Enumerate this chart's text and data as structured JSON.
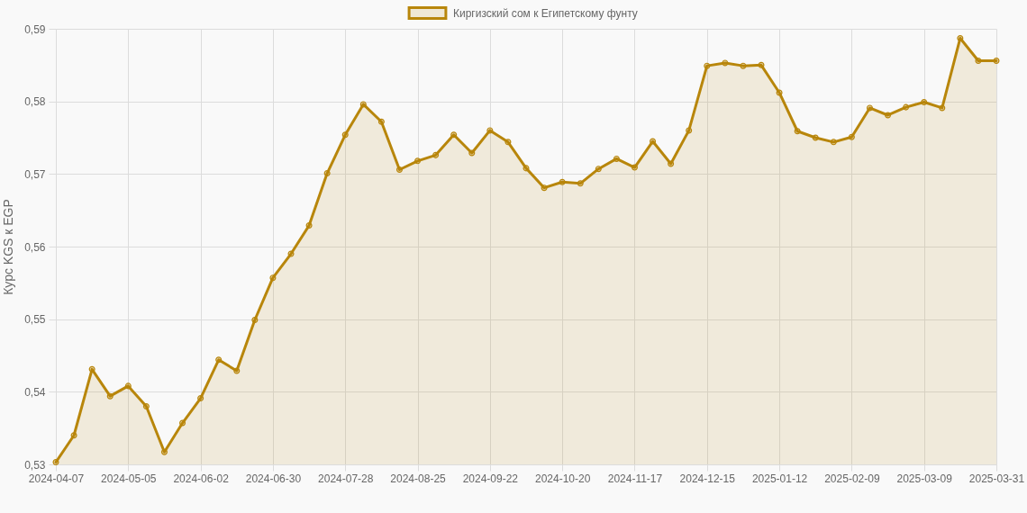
{
  "chart_data": {
    "type": "area",
    "ylabel": "Курс KGS к EGP",
    "categories": [
      "2024-04-07",
      null,
      null,
      null,
      "2024-05-05",
      null,
      null,
      null,
      "2024-06-02",
      null,
      null,
      null,
      "2024-06-30",
      null,
      null,
      null,
      "2024-07-28",
      null,
      null,
      null,
      "2024-08-25",
      null,
      null,
      null,
      "2024-09-22",
      null,
      null,
      null,
      "2024-10-20",
      null,
      null,
      null,
      "2024-11-17",
      null,
      null,
      null,
      "2024-12-15",
      null,
      null,
      null,
      "2025-01-12",
      null,
      null,
      null,
      "2025-02-09",
      null,
      null,
      null,
      "2025-03-09",
      null,
      null,
      null,
      "2025-03-31"
    ],
    "series": [
      {
        "name": "Киргизский сом к Египетскому фунту",
        "color": "#b8860b",
        "values": [
          0.5303,
          0.534,
          0.5431,
          0.5394,
          0.5408,
          0.538,
          0.5317,
          0.5357,
          0.5391,
          0.5444,
          0.5429,
          0.5499,
          0.5557,
          0.559,
          0.5629,
          0.5701,
          0.5754,
          0.5796,
          0.5772,
          0.5706,
          0.5718,
          0.5726,
          0.5754,
          0.5729,
          0.576,
          0.5744,
          0.5708,
          0.5681,
          0.5689,
          0.5687,
          0.5707,
          0.5721,
          0.5709,
          0.5745,
          0.5714,
          0.576,
          0.5849,
          0.5853,
          0.5849,
          0.585,
          0.5812,
          0.5759,
          0.575,
          0.5744,
          0.5751,
          0.5791,
          0.5781,
          0.5792,
          0.5799,
          0.5791,
          0.5887,
          0.5856,
          0.5856
        ]
      }
    ],
    "ylim": [
      0.53,
      0.59
    ],
    "yticks": [
      {
        "value": 0.53,
        "label": "0,53"
      },
      {
        "value": 0.54,
        "label": "0,54"
      },
      {
        "value": 0.55,
        "label": "0,55"
      },
      {
        "value": 0.56,
        "label": "0,56"
      },
      {
        "value": 0.57,
        "label": "0,57"
      },
      {
        "value": 0.58,
        "label": "0,58"
      },
      {
        "value": 0.59,
        "label": "0,59"
      }
    ],
    "grid": true,
    "legend": "top",
    "marker": "circle",
    "line_style": "solid"
  }
}
